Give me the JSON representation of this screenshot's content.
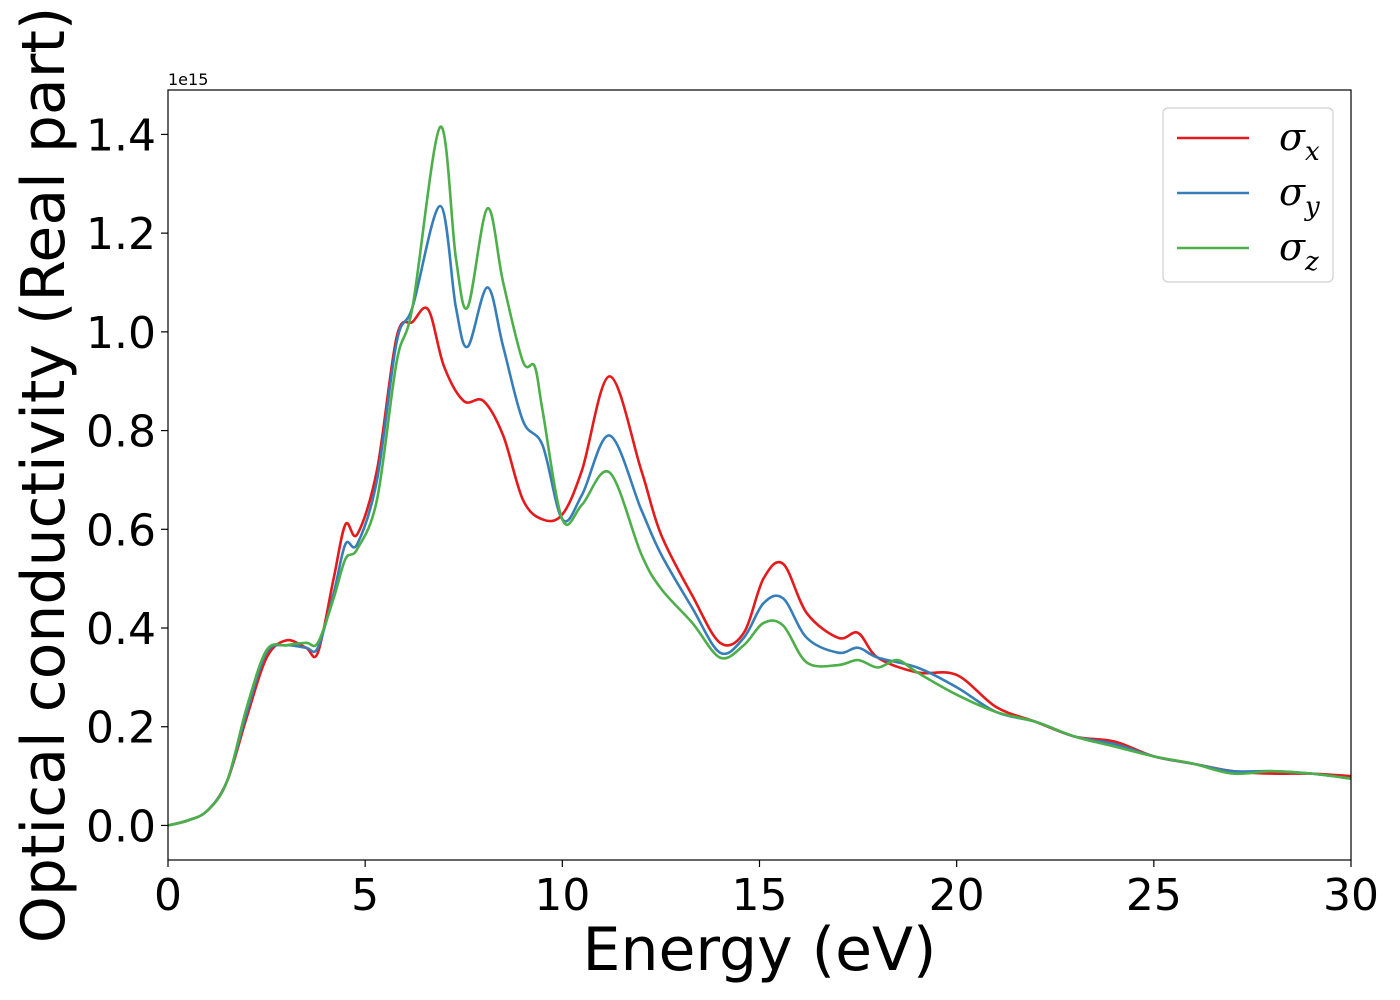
{
  "chart_data": {
    "type": "line",
    "title": "",
    "xlabel": "Energy (eV)",
    "ylabel": "Optical conductivity (Real part)",
    "y_offset_label": "1e15",
    "xlim": [
      0,
      30
    ],
    "ylim": [
      -0.07,
      1.49
    ],
    "xticks": [
      0,
      5,
      10,
      15,
      20,
      25,
      30
    ],
    "xtick_labels": [
      "0",
      "5",
      "10",
      "15",
      "20",
      "25",
      "30"
    ],
    "yticks": [
      0.0,
      0.2,
      0.4,
      0.6,
      0.8,
      1.0,
      1.2,
      1.4
    ],
    "ytick_labels": [
      "0.0",
      "0.2",
      "0.4",
      "0.6",
      "0.8",
      "1.0",
      "1.2",
      "1.4"
    ],
    "grid": false,
    "legend": "top-right",
    "series": [
      {
        "name": "σ",
        "subscript": "x",
        "color": "#e41a1c",
        "x": [
          0,
          0.5,
          1,
          1.5,
          2,
          2.5,
          3,
          3.5,
          3.8,
          4.2,
          4.5,
          4.8,
          5.3,
          5.8,
          6.2,
          6.6,
          7.0,
          7.5,
          8.0,
          8.5,
          9.0,
          9.5,
          10,
          10.5,
          11.2,
          12,
          12.5,
          13.3,
          14,
          14.6,
          15.1,
          15.6,
          16.2,
          17,
          17.5,
          18,
          19,
          20,
          21,
          22,
          23,
          24,
          25,
          26,
          27,
          28,
          29,
          30
        ],
        "y": [
          0.0,
          0.01,
          0.03,
          0.09,
          0.22,
          0.34,
          0.375,
          0.36,
          0.35,
          0.5,
          0.61,
          0.59,
          0.72,
          0.99,
          1.02,
          1.045,
          0.93,
          0.86,
          0.86,
          0.79,
          0.66,
          0.62,
          0.63,
          0.72,
          0.91,
          0.72,
          0.59,
          0.465,
          0.37,
          0.39,
          0.5,
          0.53,
          0.43,
          0.38,
          0.39,
          0.34,
          0.31,
          0.305,
          0.24,
          0.21,
          0.18,
          0.17,
          0.14,
          0.125,
          0.11,
          0.105,
          0.105,
          0.1
        ]
      },
      {
        "name": "σ",
        "subscript": "y",
        "color": "#377eb8",
        "x": [
          0,
          0.5,
          1,
          1.5,
          2,
          2.5,
          3,
          3.5,
          3.8,
          4.2,
          4.5,
          4.8,
          5.3,
          5.8,
          6.2,
          6.9,
          7.3,
          7.6,
          8.1,
          8.5,
          9.0,
          9.5,
          10,
          10.5,
          11.2,
          12,
          12.5,
          13.3,
          14,
          14.6,
          15.1,
          15.6,
          16.2,
          17,
          17.5,
          18,
          19,
          20,
          21,
          22,
          23,
          24,
          25,
          26,
          27,
          28,
          29,
          30
        ],
        "y": [
          0.0,
          0.01,
          0.03,
          0.09,
          0.23,
          0.35,
          0.365,
          0.36,
          0.36,
          0.47,
          0.57,
          0.57,
          0.7,
          0.98,
          1.05,
          1.255,
          1.05,
          0.97,
          1.09,
          0.97,
          0.82,
          0.77,
          0.62,
          0.67,
          0.79,
          0.64,
          0.55,
          0.44,
          0.35,
          0.38,
          0.45,
          0.46,
          0.38,
          0.35,
          0.36,
          0.34,
          0.32,
          0.28,
          0.23,
          0.21,
          0.18,
          0.165,
          0.14,
          0.125,
          0.11,
          0.11,
          0.105,
          0.095
        ]
      },
      {
        "name": "σ",
        "subscript": "z",
        "color": "#4daf4a",
        "x": [
          0,
          0.5,
          1,
          1.5,
          2,
          2.5,
          3,
          3.5,
          3.8,
          4.2,
          4.5,
          4.8,
          5.3,
          5.8,
          6.2,
          6.9,
          7.3,
          7.6,
          8.1,
          8.5,
          9.0,
          9.3,
          9.5,
          10,
          10.5,
          11.2,
          12,
          12.5,
          13.3,
          14,
          14.6,
          15.1,
          15.6,
          16.2,
          17,
          17.5,
          18,
          18.5,
          19,
          20,
          21,
          22,
          23,
          24,
          25,
          26,
          27,
          28,
          29,
          30
        ],
        "y": [
          0.0,
          0.01,
          0.03,
          0.09,
          0.24,
          0.355,
          0.365,
          0.37,
          0.37,
          0.46,
          0.54,
          0.56,
          0.66,
          0.94,
          1.05,
          1.415,
          1.15,
          1.05,
          1.25,
          1.1,
          0.94,
          0.93,
          0.84,
          0.62,
          0.65,
          0.715,
          0.55,
          0.48,
          0.41,
          0.34,
          0.365,
          0.41,
          0.405,
          0.33,
          0.325,
          0.335,
          0.32,
          0.335,
          0.31,
          0.265,
          0.23,
          0.21,
          0.18,
          0.16,
          0.14,
          0.125,
          0.105,
          0.11,
          0.105,
          0.095
        ]
      }
    ]
  }
}
